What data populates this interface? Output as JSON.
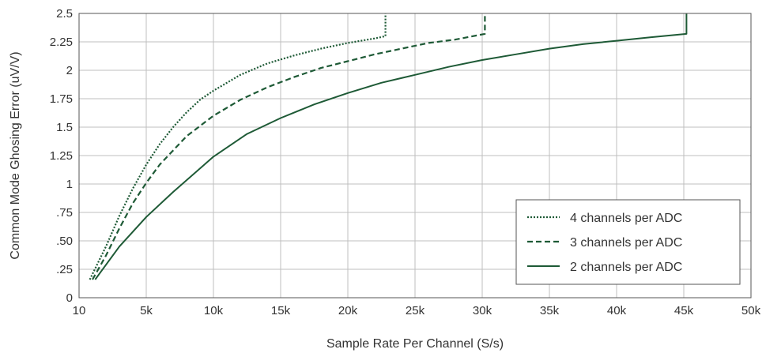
{
  "chart_data": {
    "type": "line",
    "title": "",
    "xlabel": "Sample Rate Per Channel (S/s)",
    "ylabel": "Common Mode Ghosing Error (uV/V)",
    "xlim": [
      0,
      50000
    ],
    "ylim": [
      0,
      2.5
    ],
    "grid": true,
    "legend_position": "bottom-right",
    "x_ticks": [
      {
        "value": 0,
        "label": "10"
      },
      {
        "value": 5000,
        "label": "5k"
      },
      {
        "value": 10000,
        "label": "10k"
      },
      {
        "value": 15000,
        "label": "15k"
      },
      {
        "value": 20000,
        "label": "20k"
      },
      {
        "value": 25000,
        "label": "25k"
      },
      {
        "value": 30000,
        "label": "30k"
      },
      {
        "value": 35000,
        "label": "35k"
      },
      {
        "value": 40000,
        "label": "40k"
      },
      {
        "value": 45000,
        "label": "45k"
      },
      {
        "value": 50000,
        "label": "50k"
      }
    ],
    "y_ticks": [
      {
        "value": 0,
        "label": "0"
      },
      {
        "value": 0.25,
        "label": ".25"
      },
      {
        "value": 0.5,
        "label": ".50"
      },
      {
        "value": 0.75,
        "label": ".75"
      },
      {
        "value": 1,
        "label": "1"
      },
      {
        "value": 1.25,
        "label": "1.25"
      },
      {
        "value": 1.5,
        "label": "1.5"
      },
      {
        "value": 1.75,
        "label": "1.75"
      },
      {
        "value": 2,
        "label": "2"
      },
      {
        "value": 2.25,
        "label": "2.25"
      },
      {
        "value": 2.5,
        "label": "2.5"
      }
    ],
    "series": [
      {
        "name": "4 channels per ADC",
        "style": "dotted",
        "color": "#1e5a36",
        "x": [
          800,
          2000,
          3000,
          4000,
          5000,
          6000,
          7000,
          8000,
          9000,
          10000,
          12000,
          14000,
          16000,
          18000,
          20000,
          22000,
          22800,
          22800
        ],
        "y": [
          0.16,
          0.45,
          0.72,
          0.96,
          1.17,
          1.35,
          1.5,
          1.63,
          1.74,
          1.82,
          1.96,
          2.06,
          2.13,
          2.19,
          2.24,
          2.28,
          2.3,
          2.5
        ]
      },
      {
        "name": "3 channels per ADC",
        "style": "dashed",
        "color": "#1e5a36",
        "x": [
          1000,
          2000,
          3000,
          4000,
          5000,
          6000,
          8000,
          10000,
          12000,
          14000,
          16000,
          18000,
          20000,
          22000,
          24000,
          26000,
          28000,
          30200,
          30200
        ],
        "y": [
          0.16,
          0.37,
          0.61,
          0.83,
          1.01,
          1.17,
          1.42,
          1.6,
          1.74,
          1.85,
          1.94,
          2.02,
          2.08,
          2.14,
          2.19,
          2.24,
          2.27,
          2.32,
          2.5
        ]
      },
      {
        "name": "2 channels per ADC",
        "style": "solid",
        "color": "#1e5a36",
        "x": [
          1200,
          3000,
          5000,
          7000,
          10000,
          12500,
          15000,
          17500,
          20000,
          22500,
          25000,
          27500,
          30000,
          32500,
          35000,
          37500,
          40000,
          42500,
          45200,
          45200
        ],
        "y": [
          0.16,
          0.45,
          0.71,
          0.93,
          1.24,
          1.44,
          1.58,
          1.7,
          1.8,
          1.89,
          1.96,
          2.03,
          2.09,
          2.14,
          2.19,
          2.23,
          2.26,
          2.29,
          2.32,
          2.5
        ]
      }
    ]
  }
}
